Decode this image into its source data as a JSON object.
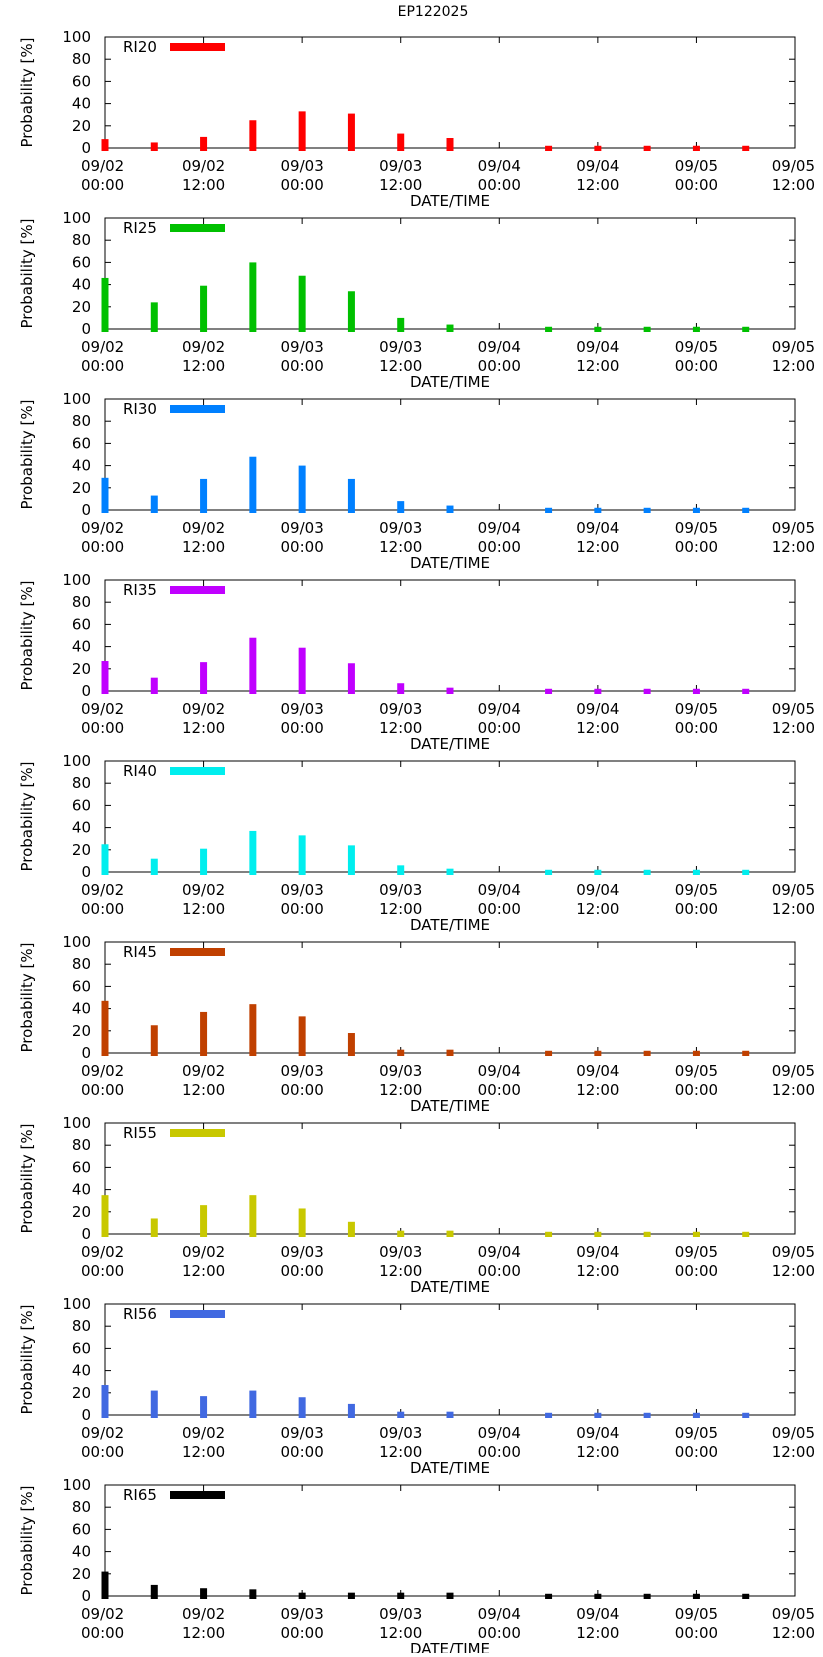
{
  "figure": {
    "title": "EP122025"
  },
  "chart_data": {
    "type": "bar",
    "title": "EP122025",
    "xlabel": "DATE/TIME",
    "ylabel": "Probability [%]",
    "ylim": [
      0,
      100
    ],
    "yticks": [
      "0",
      "20",
      "40",
      "60",
      "80",
      "100"
    ],
    "xticks": [
      {
        "date": "09/02",
        "time": "00:00",
        "hour": 0
      },
      {
        "date": "09/02",
        "time": "12:00",
        "hour": 12
      },
      {
        "date": "09/03",
        "time": "00:00",
        "hour": 24
      },
      {
        "date": "09/03",
        "time": "12:00",
        "hour": 36
      },
      {
        "date": "09/04",
        "time": "00:00",
        "hour": 48
      },
      {
        "date": "09/04",
        "time": "12:00",
        "hour": 60
      },
      {
        "date": "09/05",
        "time": "00:00",
        "hour": 72
      },
      {
        "date": "09/05",
        "time": "12:00",
        "hour": 84
      }
    ],
    "xlim": [
      0,
      84
    ],
    "x_hours": [
      0,
      6,
      12,
      18,
      24,
      30,
      36,
      42,
      54,
      60,
      66,
      72,
      78
    ],
    "grid": false,
    "legend_position": "top-left",
    "series": [
      {
        "name": "RI20",
        "color": "#ff0000",
        "values": [
          8,
          5,
          10,
          25,
          33,
          31,
          13,
          9,
          2,
          2,
          2,
          2,
          2
        ]
      },
      {
        "name": "RI25",
        "color": "#00c000",
        "values": [
          46,
          24,
          39,
          60,
          48,
          34,
          10,
          4,
          2,
          2,
          2,
          2,
          2
        ]
      },
      {
        "name": "RI30",
        "color": "#0080ff",
        "values": [
          29,
          13,
          28,
          48,
          40,
          28,
          8,
          4,
          2,
          2,
          2,
          2,
          2
        ]
      },
      {
        "name": "RI35",
        "color": "#c000ff",
        "values": [
          27,
          12,
          26,
          48,
          39,
          25,
          7,
          3,
          2,
          2,
          2,
          2,
          2
        ]
      },
      {
        "name": "RI40",
        "color": "#00eeee",
        "values": [
          25,
          12,
          21,
          37,
          33,
          24,
          6,
          3,
          2,
          2,
          2,
          2,
          2
        ]
      },
      {
        "name": "RI45",
        "color": "#c04000",
        "values": [
          47,
          25,
          37,
          44,
          33,
          18,
          3,
          3,
          2,
          2,
          2,
          2,
          2
        ]
      },
      {
        "name": "RI55",
        "color": "#c8c800",
        "values": [
          35,
          14,
          26,
          35,
          23,
          11,
          3,
          3,
          2,
          2,
          2,
          2,
          2
        ]
      },
      {
        "name": "RI56",
        "color": "#4169e1",
        "values": [
          27,
          22,
          17,
          22,
          16,
          10,
          3,
          3,
          2,
          2,
          2,
          2,
          2
        ]
      },
      {
        "name": "RI65",
        "color": "#000000",
        "values": [
          22,
          10,
          7,
          6,
          3,
          3,
          3,
          3,
          2,
          2,
          2,
          2,
          2
        ]
      }
    ]
  }
}
